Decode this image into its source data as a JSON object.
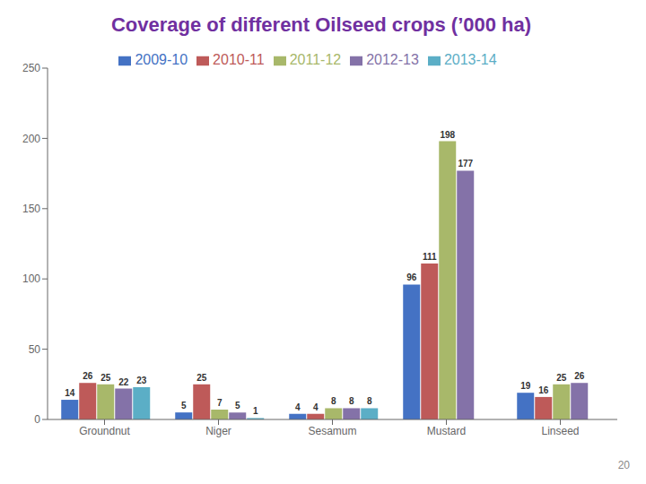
{
  "chart_data": {
    "type": "bar",
    "title": "Coverage of different Oilseed crops (’000 ha)",
    "categories": [
      "Groundnut",
      "Niger",
      "Sesamum",
      "Mustard",
      "Linseed"
    ],
    "series": [
      {
        "name": "2009-10",
        "color": "#4472C4",
        "values": [
          14,
          5,
          4,
          96,
          19
        ],
        "value_labels": [
          "14",
          "5",
          "4",
          "96",
          "19"
        ]
      },
      {
        "name": "2010-11",
        "color": "#BE5A59",
        "values": [
          26,
          25,
          4,
          111,
          16
        ],
        "value_labels": [
          "26",
          "25",
          "4",
          "111",
          "16"
        ]
      },
      {
        "name": "2011-12",
        "color": "#A8B86A",
        "values": [
          25,
          7,
          8,
          198,
          25
        ],
        "value_labels": [
          "25",
          "7",
          "8",
          "198",
          "25"
        ]
      },
      {
        "name": "2012-13",
        "color": "#8472A8",
        "values": [
          22,
          5,
          8,
          177,
          26
        ],
        "value_labels": [
          "22",
          "5",
          "8",
          "177",
          "26"
        ]
      },
      {
        "name": "2013-14",
        "color": "#5BAEC6",
        "values": [
          23,
          1,
          8,
          0,
          0
        ],
        "value_labels": [
          "23",
          "1",
          "8",
          null,
          null
        ]
      }
    ],
    "ylim": [
      0,
      250
    ],
    "yticks": [
      0,
      50,
      100,
      150,
      200,
      250
    ],
    "grid": false,
    "legend": "top",
    "data_labels": true,
    "annotations": [
      "20"
    ]
  }
}
